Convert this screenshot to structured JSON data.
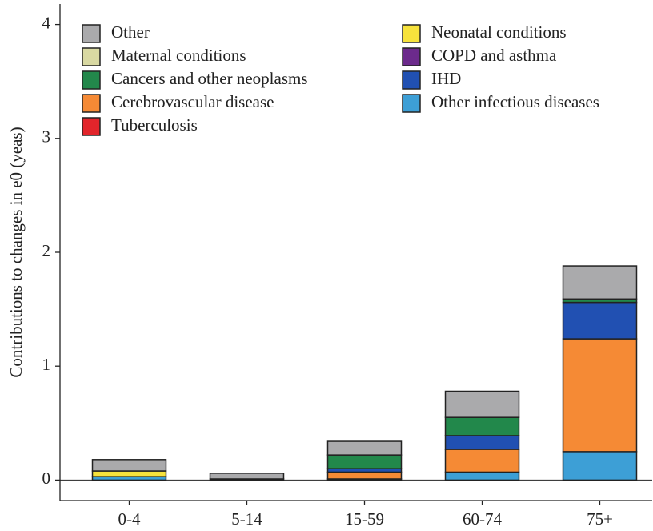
{
  "chart_data": {
    "type": "bar",
    "stacked": true,
    "y_label": "Contributions to changes in e0 (yeas)",
    "categories": [
      "0-4",
      "5-14",
      "15-59",
      "60-74",
      "75+"
    ],
    "series": [
      {
        "name": "Other infectious diseases",
        "color": "#3d9fd6",
        "values": [
          0.03,
          0,
          0.01,
          0.07,
          0.25
        ]
      },
      {
        "name": "Cerebrovascular disease",
        "color": "#f58a35",
        "values": [
          0,
          0,
          0.06,
          0.2,
          0.99
        ]
      },
      {
        "name": "IHD",
        "color": "#2150b2",
        "values": [
          0,
          0,
          0.03,
          0.12,
          0.32
        ]
      },
      {
        "name": "COPD and asthma",
        "color": "#6c2a8c",
        "values": [
          0,
          0,
          0,
          0,
          0
        ]
      },
      {
        "name": "Tuberculosis",
        "color": "#e2252b",
        "values": [
          0,
          0,
          0,
          0,
          0
        ]
      },
      {
        "name": "Neonatal conditions",
        "color": "#f6e23c",
        "values": [
          0.05,
          0,
          0,
          0,
          0
        ]
      },
      {
        "name": "Cancers and other neoplasms",
        "color": "#22884b",
        "values": [
          0,
          0.01,
          0.12,
          0.16,
          0.03
        ]
      },
      {
        "name": "Maternal conditions",
        "color": "#d9d9a2",
        "values": [
          0,
          0,
          0,
          0,
          0
        ]
      },
      {
        "name": "Other",
        "color": "#aaaaac",
        "values": [
          0.1,
          0.05,
          0.12,
          0.23,
          0.29
        ]
      }
    ],
    "ylim": [
      -0.18,
      4.18
    ],
    "yticks": [
      0,
      1,
      2,
      3,
      4
    ],
    "grid": false
  }
}
